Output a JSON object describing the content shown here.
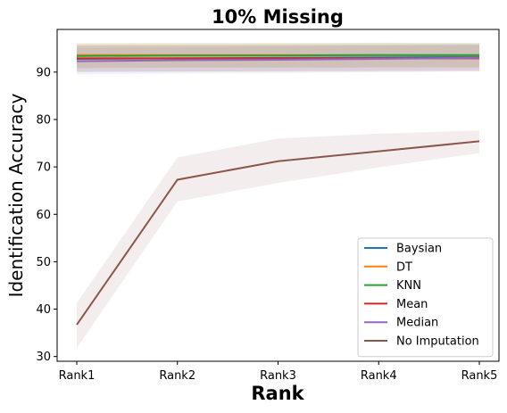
{
  "chart_data": {
    "type": "line",
    "title": "10% Missing",
    "xlabel": "Rank",
    "ylabel": "Identification Accuracy",
    "categories": [
      "Rank1",
      "Rank2",
      "Rank3",
      "Rank4",
      "Rank5"
    ],
    "ylim": [
      29,
      99
    ],
    "yticks": [
      30,
      40,
      50,
      60,
      70,
      80,
      90
    ],
    "grid": false,
    "legend_position": "lower-right",
    "series": [
      {
        "name": "Baysian",
        "color": "#1f77b4",
        "values": [
          92.8,
          92.9,
          93.0,
          93.1,
          93.2
        ],
        "lower": [
          90.0,
          90.1,
          90.2,
          90.3,
          90.4
        ],
        "upper": [
          95.6,
          95.7,
          95.8,
          95.9,
          96.0
        ]
      },
      {
        "name": "DT",
        "color": "#ff7f0e",
        "values": [
          93.6,
          93.6,
          93.6,
          93.6,
          93.5
        ],
        "lower": [
          91.0,
          91.0,
          91.0,
          91.0,
          90.9
        ],
        "upper": [
          96.2,
          96.2,
          96.2,
          96.2,
          96.1
        ]
      },
      {
        "name": "KNN",
        "color": "#2ca02c",
        "values": [
          93.4,
          93.5,
          93.5,
          93.6,
          93.6
        ],
        "lower": [
          90.8,
          90.9,
          90.9,
          91.0,
          91.0
        ],
        "upper": [
          96.0,
          96.1,
          96.1,
          96.2,
          96.2
        ]
      },
      {
        "name": "Mean",
        "color": "#d62728",
        "values": [
          92.9,
          92.9,
          92.9,
          92.9,
          92.9
        ],
        "lower": [
          90.1,
          90.1,
          90.1,
          90.1,
          90.1
        ],
        "upper": [
          95.7,
          95.7,
          95.7,
          95.7,
          95.7
        ]
      },
      {
        "name": "Median",
        "color": "#9467bd",
        "values": [
          92.3,
          92.5,
          92.6,
          92.8,
          93.0
        ],
        "lower": [
          89.5,
          89.7,
          89.8,
          90.0,
          90.2
        ],
        "upper": [
          95.1,
          95.3,
          95.4,
          95.6,
          95.8
        ]
      },
      {
        "name": "No Imputation",
        "color": "#8c564b",
        "values": [
          36.7,
          67.3,
          71.2,
          73.3,
          75.4
        ],
        "lower": [
          31.8,
          62.7,
          66.6,
          69.9,
          72.9
        ],
        "upper": [
          41.3,
          72.0,
          76.0,
          77.0,
          77.7
        ]
      }
    ]
  }
}
